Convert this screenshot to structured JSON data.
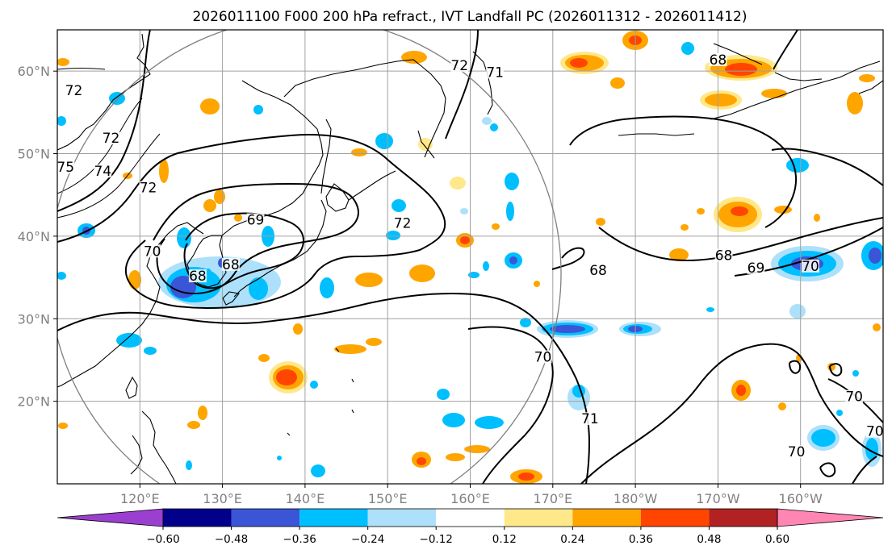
{
  "title": "2026011100 F000 200 hPa refract., IVT Landfall PC (2026011312 - 2026011412)",
  "colors": {
    "frame": "#000000",
    "grid": "#a0a0a0",
    "tick_text": "#808080",
    "coast": "#000000",
    "contour": "#000000",
    "circle": "#808080"
  },
  "map": {
    "lon_range": [
      110,
      210
    ],
    "lat_range": [
      10,
      65
    ],
    "lon_ticks": [
      {
        "value": 120,
        "label": "120°E"
      },
      {
        "value": 130,
        "label": "130°E"
      },
      {
        "value": 140,
        "label": "140°E"
      },
      {
        "value": 150,
        "label": "150°E"
      },
      {
        "value": 160,
        "label": "160°E"
      },
      {
        "value": 170,
        "label": "170°E"
      },
      {
        "value": 180,
        "label": "180°W"
      },
      {
        "value": 190,
        "label": "170°W"
      },
      {
        "value": 200,
        "label": "160°W"
      }
    ],
    "lat_ticks": [
      {
        "value": 20,
        "label": "20°N"
      },
      {
        "value": 30,
        "label": "30°N"
      },
      {
        "value": 40,
        "label": "40°N"
      },
      {
        "value": 50,
        "label": "50°N"
      },
      {
        "value": 60,
        "label": "60°N"
      }
    ],
    "grid": true,
    "circle": {
      "center": [
        140,
        35.5
      ],
      "radius_deg": 31
    },
    "contour_labels": [
      {
        "text": "72",
        "lon": 112,
        "lat": 57.3
      },
      {
        "text": "72",
        "lon": 116.5,
        "lat": 51.5
      },
      {
        "text": "74",
        "lon": 115.5,
        "lat": 47.5
      },
      {
        "text": "75",
        "lon": 111,
        "lat": 48
      },
      {
        "text": "72",
        "lon": 121,
        "lat": 45.5
      },
      {
        "text": "69",
        "lon": 134,
        "lat": 41.6
      },
      {
        "text": "70",
        "lon": 121.5,
        "lat": 37.8
      },
      {
        "text": "68",
        "lon": 127,
        "lat": 34.8
      },
      {
        "text": "68",
        "lon": 131,
        "lat": 36.2
      },
      {
        "text": "72",
        "lon": 151.8,
        "lat": 41.2
      },
      {
        "text": "72",
        "lon": 158.7,
        "lat": 60.3
      },
      {
        "text": "71",
        "lon": 163,
        "lat": 59.5
      },
      {
        "text": "68",
        "lon": 175.5,
        "lat": 35.5
      },
      {
        "text": "68",
        "lon": 190,
        "lat": 61
      },
      {
        "text": "68",
        "lon": 190.7,
        "lat": 37.3
      },
      {
        "text": "69",
        "lon": 194.6,
        "lat": 35.8
      },
      {
        "text": "70",
        "lon": 201.2,
        "lat": 36
      },
      {
        "text": "70",
        "lon": 168.8,
        "lat": 25
      },
      {
        "text": "71",
        "lon": 174.5,
        "lat": 17.5
      },
      {
        "text": "70",
        "lon": 206.5,
        "lat": 20.2
      },
      {
        "text": "70",
        "lon": 199.5,
        "lat": 13.5
      },
      {
        "text": "70",
        "lon": 209,
        "lat": 16
      }
    ]
  },
  "colorbar": {
    "levels": [
      "−0.60",
      "−0.48",
      "−0.36",
      "−0.24",
      "−0.12",
      "0.12",
      "0.24",
      "0.36",
      "0.48",
      "0.60"
    ],
    "colors": [
      "#9b3fd0",
      "#00008b",
      "#3a55d6",
      "#00bfff",
      "#ade0fa",
      "#ffffff",
      "#ffe88a",
      "#ffa500",
      "#ff4500",
      "#b22222",
      "#ff85b3"
    ]
  }
}
